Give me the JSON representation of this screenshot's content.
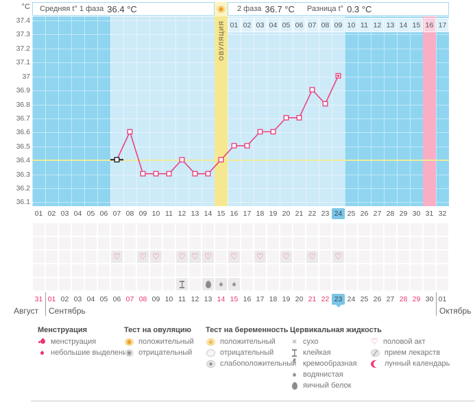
{
  "header": {
    "avg_phase1_label": "Средняя t° 1 фаза",
    "avg_phase1_value": "36.4 °C",
    "phase2_label": "2 фаза",
    "phase2_value": "36.7 °C",
    "diff_label": "Разница t°",
    "diff_value": "0.3 °C"
  },
  "chart_data": {
    "type": "line",
    "ylabel": "°C",
    "ylim": [
      36.1,
      37.4
    ],
    "ytick_labels": [
      "37.4",
      "37.3",
      "37.2",
      "37.1",
      "37",
      "36.9",
      "36.8",
      "36.7",
      "36.6",
      "36.5",
      "36.4",
      "36.3",
      "36.2",
      "36.1"
    ],
    "coverline": 36.4,
    "ovulation_day": 15,
    "ovulation_label": "ОВУЛЯЦИЯ",
    "expected_period_day": 31,
    "current_cycle_day": 24,
    "temps": [
      {
        "day": 7,
        "temp": 36.4,
        "flag": "start"
      },
      {
        "day": 8,
        "temp": 36.6
      },
      {
        "day": 9,
        "temp": 36.3
      },
      {
        "day": 10,
        "temp": 36.3
      },
      {
        "day": 11,
        "temp": 36.3
      },
      {
        "day": 12,
        "temp": 36.4
      },
      {
        "day": 13,
        "temp": 36.3
      },
      {
        "day": 14,
        "temp": 36.3
      },
      {
        "day": 15,
        "temp": 36.4
      },
      {
        "day": 16,
        "temp": 36.5
      },
      {
        "day": 17,
        "temp": 36.5
      },
      {
        "day": 18,
        "temp": 36.6
      },
      {
        "day": 19,
        "temp": 36.6
      },
      {
        "day": 20,
        "temp": 36.7
      },
      {
        "day": 21,
        "temp": 36.7
      },
      {
        "day": 22,
        "temp": 36.9
      },
      {
        "day": 23,
        "temp": 36.8
      },
      {
        "day": 24,
        "temp": 37.0,
        "flag": "current"
      }
    ],
    "dpo_labels": [
      "01",
      "02",
      "03",
      "04",
      "05",
      "06",
      "07",
      "08",
      "09",
      "10",
      "11",
      "12",
      "13",
      "14",
      "15",
      "16",
      "17"
    ],
    "dpo_period_label": "16",
    "line_color": "#e8447e",
    "coverline_color": "#f0eb98"
  },
  "cycle_row": {
    "labels": [
      "01",
      "02",
      "03",
      "04",
      "05",
      "06",
      "07",
      "08",
      "09",
      "10",
      "11",
      "12",
      "13",
      "14",
      "15",
      "16",
      "17",
      "18",
      "19",
      "20",
      "21",
      "22",
      "23",
      "24",
      "25",
      "26",
      "27",
      "28",
      "29",
      "30",
      "31",
      "32"
    ],
    "current": "24"
  },
  "symbol_rows": {
    "rows": 5,
    "intercourse_row": 3,
    "cervical_row": 5,
    "intercourse_days": [
      7,
      9,
      10,
      12,
      13,
      14,
      16,
      18,
      20,
      22,
      24
    ],
    "cervical": [
      {
        "day": 12,
        "type": "sticky"
      },
      {
        "day": 14,
        "type": "eggwhite"
      },
      {
        "day": 15,
        "type": "watery"
      },
      {
        "day": 16,
        "type": "watery"
      }
    ]
  },
  "dates_row": {
    "labels": [
      "31",
      "01",
      "02",
      "03",
      "04",
      "05",
      "06",
      "07",
      "08",
      "09",
      "10",
      "11",
      "12",
      "13",
      "14",
      "15",
      "16",
      "17",
      "18",
      "19",
      "20",
      "21",
      "22",
      "23",
      "24",
      "25",
      "26",
      "27",
      "28",
      "29",
      "30",
      "01"
    ],
    "weekend_days": [
      1,
      2,
      8,
      9,
      15,
      16,
      22,
      23,
      29,
      30
    ],
    "current_day": 24
  },
  "months": {
    "left": "Август",
    "middle": "Сентябрь",
    "right": "Октябрь"
  },
  "legend": {
    "columns": [
      {
        "title": "Менструация",
        "items": [
          {
            "icon": "menstruation",
            "label": "менструация"
          },
          {
            "icon": "spotting",
            "label": "небольшие выделения"
          }
        ]
      },
      {
        "title": "Тест на овуляцию",
        "items": [
          {
            "icon": "test-positive",
            "label": "положительный"
          },
          {
            "icon": "test-negative-gray",
            "label": "отрицательный"
          }
        ]
      },
      {
        "title": "Тест на беременность",
        "items": [
          {
            "icon": "test-positive-hatch",
            "label": "положительный"
          },
          {
            "icon": "test-negative-white",
            "label": "отрицательный"
          },
          {
            "icon": "test-weak-positive",
            "label": "слабоположительный"
          }
        ]
      },
      {
        "title": "Цервикальная жидкость",
        "items": [
          {
            "icon": "dry",
            "label": "сухо"
          },
          {
            "icon": "sticky",
            "label": "клейкая"
          },
          {
            "icon": "creamy",
            "label": "кремообразная"
          },
          {
            "icon": "watery",
            "label": "водянистая"
          },
          {
            "icon": "eggwhite",
            "label": "яичный белок"
          }
        ]
      },
      {
        "title": "",
        "items": [
          {
            "icon": "intercourse",
            "label": "половой акт"
          },
          {
            "icon": "medication",
            "label": "прием лекарств"
          },
          {
            "icon": "lunar",
            "label": "лунный календарь"
          }
        ]
      }
    ]
  },
  "colors": {
    "column_default": "#8fd5f0",
    "column_measured": "#cdeaf8",
    "column_ovulation": "#f6e890",
    "column_period": "#f9aec6",
    "highlight_day": "#7cc5e7",
    "weekend_text": "#e8356e"
  }
}
